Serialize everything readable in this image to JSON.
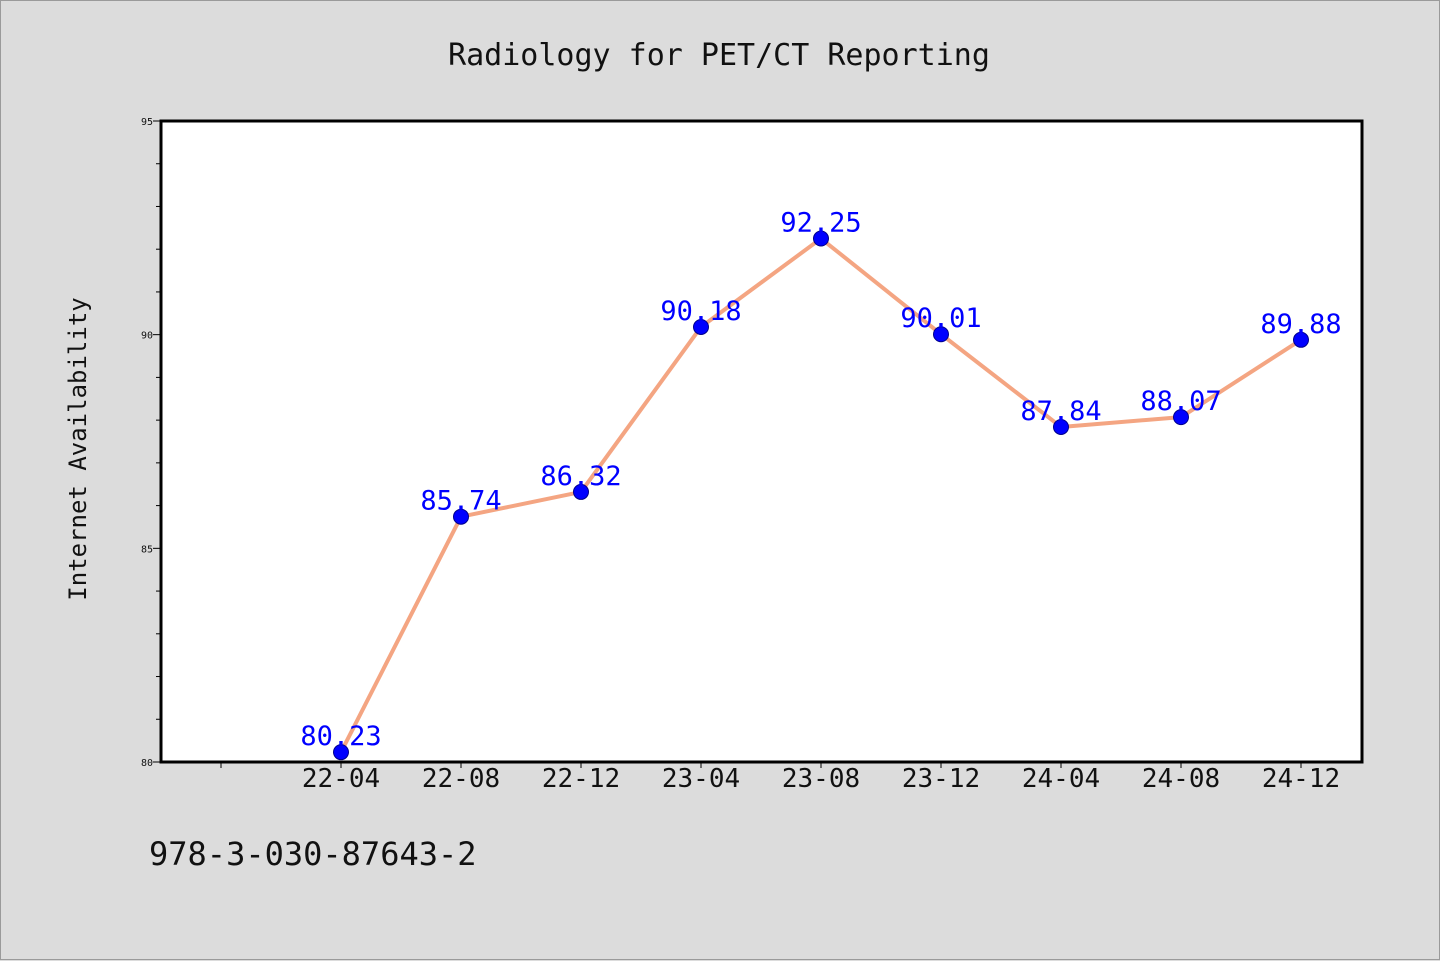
{
  "chart_data": {
    "type": "line",
    "title": "Radiology for PET/CT Reporting",
    "xlabel": "",
    "ylabel": "Internet Availability",
    "categories": [
      "22-04",
      "22-08",
      "22-12",
      "23-04",
      "23-08",
      "23-12",
      "24-04",
      "24-08",
      "24-12"
    ],
    "values": [
      80.23,
      85.74,
      86.32,
      90.18,
      92.25,
      90.01,
      87.84,
      88.07,
      89.88
    ],
    "data_labels": [
      "80.23",
      "85.74",
      "86.32",
      "90.18",
      "92.25",
      "90.01",
      "87.84",
      "88.07",
      "89.88"
    ],
    "ylim": [
      80,
      95
    ],
    "yticks": [
      "80",
      "85",
      "90",
      "95"
    ],
    "y_minor_step": 1,
    "grid": false,
    "legend": "none",
    "colors": {
      "line": "#f4a582",
      "marker": "#0000ff",
      "label": "#0000ff",
      "plot_bg": "#ffffff",
      "figure_bg": "#dcdcdc"
    }
  },
  "footer": {
    "isbn": "978-3-030-87643-2"
  }
}
